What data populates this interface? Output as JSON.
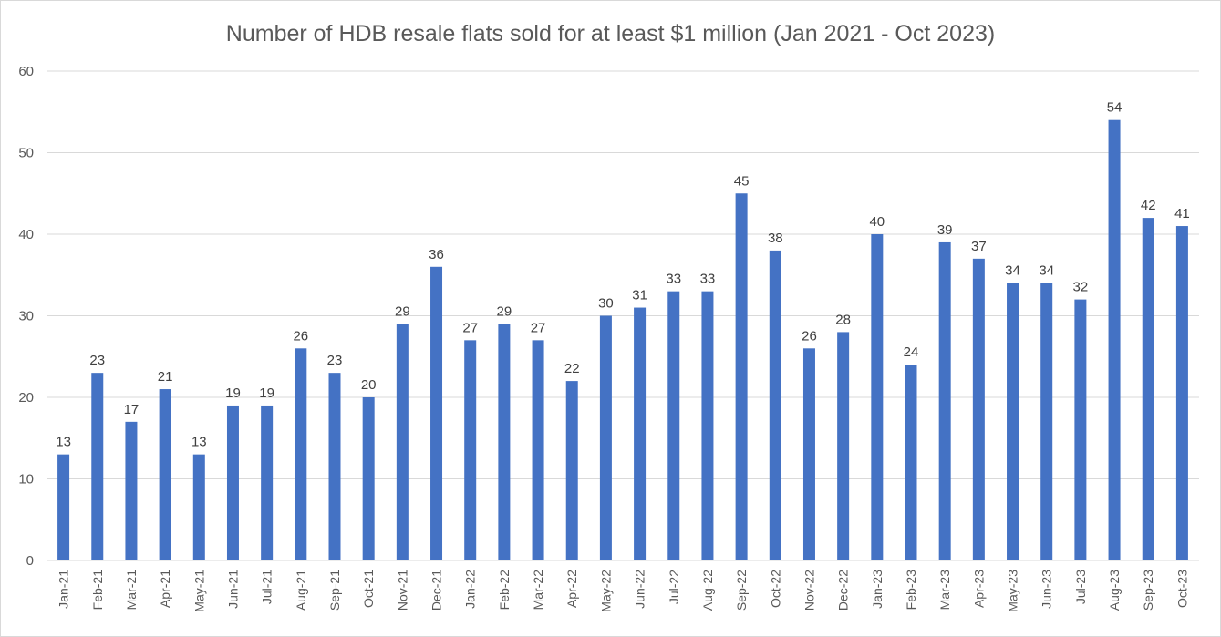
{
  "chart_data": {
    "type": "bar",
    "title": "Number of HDB resale flats sold for at least $1 million (Jan 2021 - Oct 2023)",
    "xlabel": "",
    "ylabel": "",
    "ylim": [
      0,
      60
    ],
    "yticks": [
      0,
      10,
      20,
      30,
      40,
      50,
      60
    ],
    "grid": true,
    "legend": "none",
    "bar_color": "#4472c4",
    "categories": [
      "Jan-21",
      "Feb-21",
      "Mar-21",
      "Apr-21",
      "May-21",
      "Jun-21",
      "Jul-21",
      "Aug-21",
      "Sep-21",
      "Oct-21",
      "Nov-21",
      "Dec-21",
      "Jan-22",
      "Feb-22",
      "Mar-22",
      "Apr-22",
      "May-22",
      "Jun-22",
      "Jul-22",
      "Aug-22",
      "Sep-22",
      "Oct-22",
      "Nov-22",
      "Dec-22",
      "Jan-23",
      "Feb-23",
      "Mar-23",
      "Apr-23",
      "May-23",
      "Jun-23",
      "Jul-23",
      "Aug-23",
      "Sep-23",
      "Oct-23"
    ],
    "values": [
      13,
      23,
      17,
      21,
      13,
      19,
      19,
      26,
      23,
      20,
      29,
      36,
      27,
      29,
      27,
      22,
      30,
      31,
      33,
      33,
      45,
      38,
      26,
      28,
      40,
      24,
      39,
      37,
      34,
      34,
      32,
      54,
      42,
      41
    ]
  }
}
